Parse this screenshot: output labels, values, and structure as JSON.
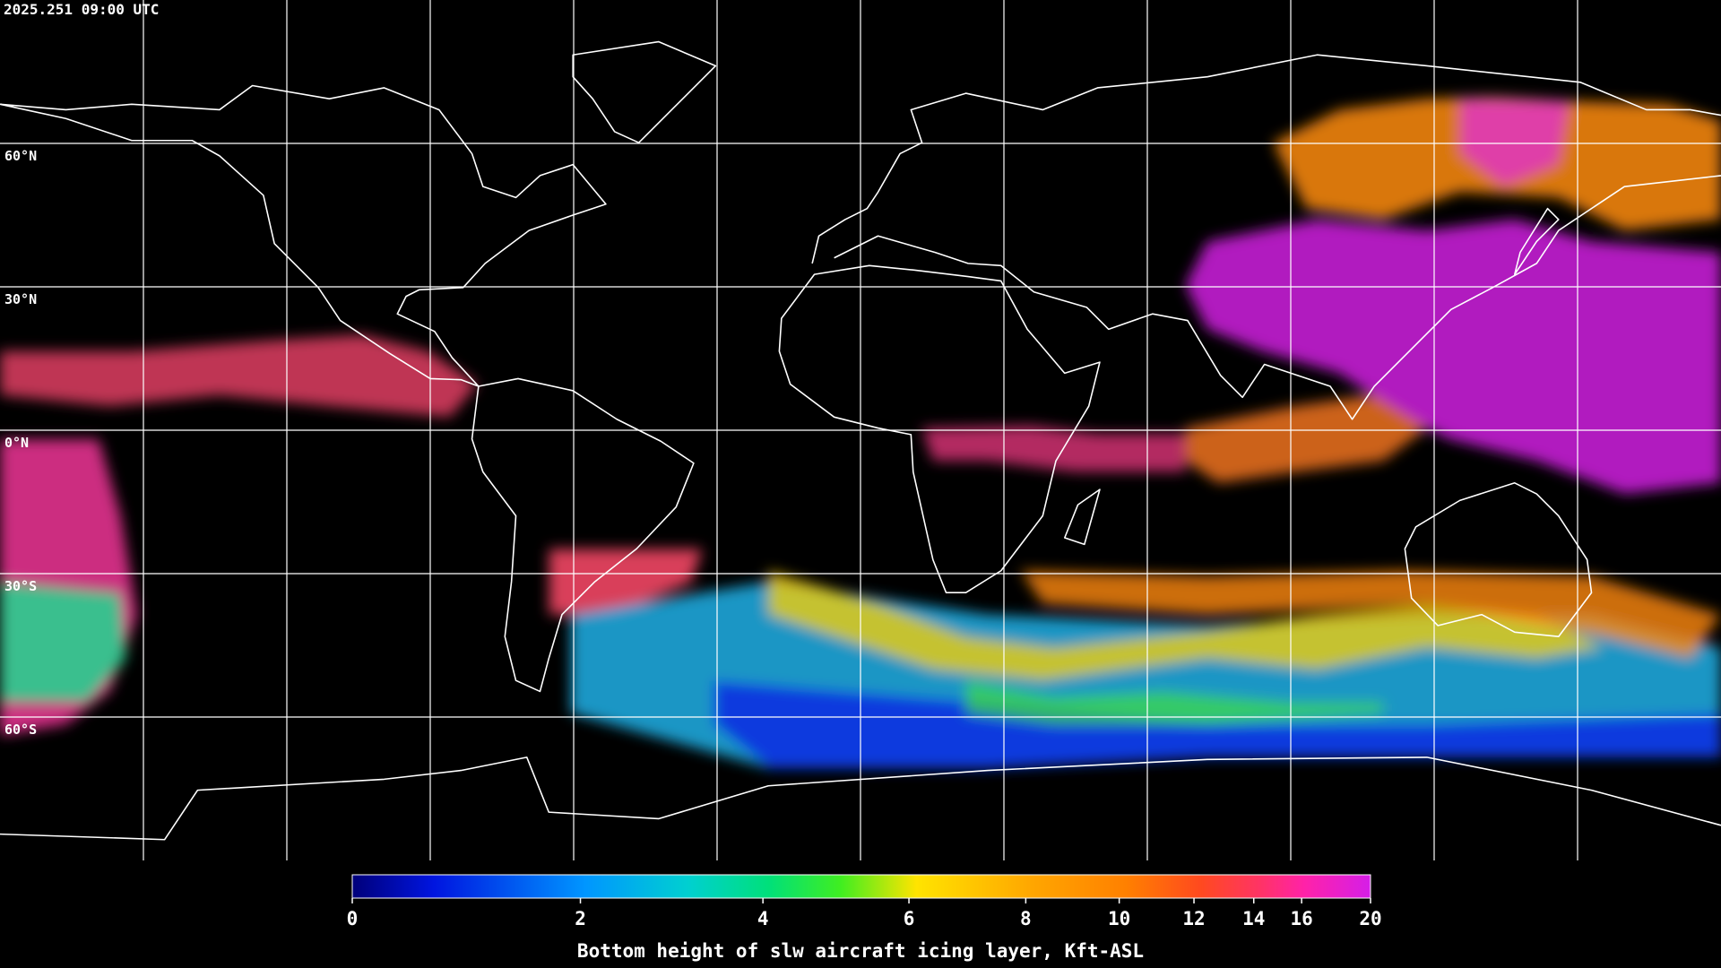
{
  "timestamp": "2025.251 09:00 UTC",
  "map": {
    "latitude_labels": [
      "60°N",
      "30°N",
      "0°N",
      "30°S",
      "60°S"
    ]
  },
  "colorbar": {
    "title": "Bottom height of slw aircraft icing layer, Kft-ASL",
    "range": [
      0,
      20
    ],
    "ticks": [
      0,
      2,
      4,
      6,
      8,
      10,
      12,
      14,
      16,
      20
    ]
  }
}
